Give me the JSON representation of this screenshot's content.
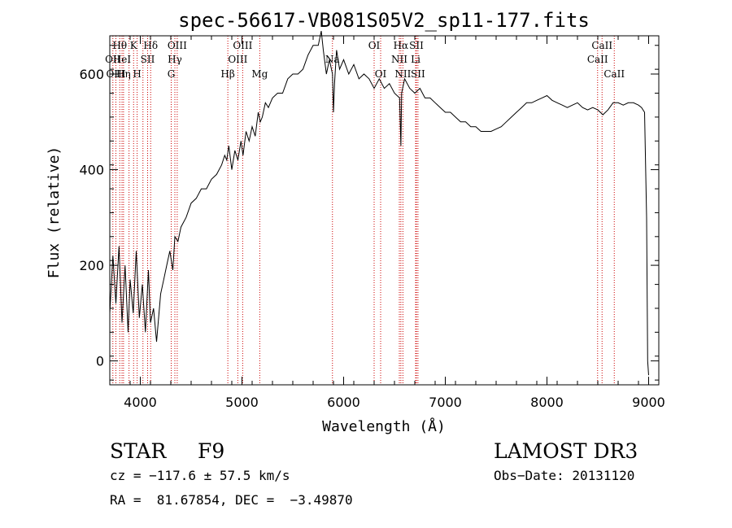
{
  "chart_data": {
    "type": "line",
    "title": "spec-56617-VB081S05V2_sp11-177.fits",
    "xlabel": "Wavelength (Å)",
    "ylabel": "Flux (relative)",
    "xlim": [
      3700,
      9100
    ],
    "ylim": [
      -50,
      680
    ],
    "xticks": [
      4000,
      5000,
      6000,
      7000,
      8000,
      9000
    ],
    "yticks": [
      0,
      200,
      400,
      600
    ],
    "grid": false,
    "series_color": "#000000",
    "line_color": "#cc0000",
    "spectrum": {
      "x": [
        3700,
        3730,
        3760,
        3790,
        3820,
        3850,
        3880,
        3900,
        3930,
        3960,
        3990,
        4020,
        4050,
        4080,
        4100,
        4130,
        4160,
        4200,
        4230,
        4260,
        4290,
        4320,
        4340,
        4370,
        4400,
        4450,
        4500,
        4550,
        4600,
        4650,
        4700,
        4750,
        4800,
        4830,
        4850,
        4870,
        4900,
        4930,
        4960,
        4990,
        5010,
        5040,
        5070,
        5100,
        5130,
        5160,
        5180,
        5200,
        5230,
        5260,
        5300,
        5350,
        5400,
        5450,
        5500,
        5550,
        5600,
        5650,
        5700,
        5750,
        5780,
        5800,
        5830,
        5860,
        5890,
        5900,
        5910,
        5930,
        5960,
        6000,
        6050,
        6100,
        6150,
        6200,
        6250,
        6300,
        6350,
        6400,
        6450,
        6500,
        6550,
        6563,
        6570,
        6600,
        6650,
        6700,
        6750,
        6800,
        6850,
        6900,
        6950,
        7000,
        7050,
        7100,
        7150,
        7200,
        7250,
        7300,
        7350,
        7400,
        7450,
        7500,
        7550,
        7600,
        7650,
        7700,
        7750,
        7800,
        7850,
        7900,
        7950,
        8000,
        8050,
        8100,
        8150,
        8200,
        8250,
        8300,
        8350,
        8400,
        8450,
        8500,
        8550,
        8600,
        8650,
        8700,
        8750,
        8800,
        8850,
        8900,
        8930,
        8960,
        8980,
        8990,
        9000
      ],
      "y": [
        100,
        220,
        120,
        240,
        80,
        200,
        60,
        170,
        100,
        230,
        90,
        160,
        60,
        190,
        80,
        110,
        40,
        140,
        170,
        200,
        230,
        190,
        260,
        250,
        280,
        300,
        330,
        340,
        360,
        360,
        380,
        390,
        410,
        430,
        420,
        450,
        400,
        440,
        420,
        460,
        430,
        480,
        460,
        490,
        470,
        520,
        500,
        510,
        540,
        530,
        550,
        560,
        560,
        590,
        600,
        600,
        610,
        640,
        660,
        660,
        690,
        650,
        600,
        630,
        600,
        520,
        580,
        650,
        610,
        630,
        600,
        620,
        590,
        600,
        590,
        570,
        590,
        570,
        580,
        560,
        550,
        450,
        560,
        590,
        570,
        560,
        570,
        550,
        550,
        540,
        530,
        520,
        520,
        510,
        500,
        500,
        490,
        490,
        480,
        480,
        480,
        485,
        490,
        500,
        510,
        520,
        530,
        540,
        540,
        545,
        550,
        555,
        545,
        540,
        535,
        530,
        535,
        540,
        530,
        525,
        530,
        525,
        515,
        525,
        540,
        540,
        535,
        540,
        540,
        535,
        530,
        520,
        300,
        0,
        -30
      ]
    },
    "lines": [
      {
        "x": 3730,
        "label": "OII",
        "row": 1
      },
      {
        "x": 3760,
        "label": "OIII",
        "row": 2
      },
      {
        "x": 3798,
        "label": "Hθ",
        "row": 0
      },
      {
        "x": 3820,
        "label": "HeI",
        "row": 1
      },
      {
        "x": 3835,
        "label": "Hη",
        "row": 2
      },
      {
        "x": 3889,
        "label": "",
        "row": 3
      },
      {
        "x": 3934,
        "label": "K",
        "row": 0
      },
      {
        "x": 3969,
        "label": "H",
        "row": 2
      },
      {
        "x": 4026,
        "label": "",
        "row": 3
      },
      {
        "x": 4072,
        "label": "SII",
        "row": 1
      },
      {
        "x": 4102,
        "label": "Hδ",
        "row": 0
      },
      {
        "x": 4304,
        "label": "G",
        "row": 2
      },
      {
        "x": 4340,
        "label": "Hγ",
        "row": 1
      },
      {
        "x": 4363,
        "label": "OIII",
        "row": 0
      },
      {
        "x": 4861,
        "label": "Hβ",
        "row": 2
      },
      {
        "x": 4959,
        "label": "OIII",
        "row": 1
      },
      {
        "x": 5007,
        "label": "OIII",
        "row": 0
      },
      {
        "x": 5175,
        "label": "Mg",
        "row": 2
      },
      {
        "x": 5890,
        "label": "Na",
        "row": 1
      },
      {
        "x": 6300,
        "label": "OI",
        "row": 0
      },
      {
        "x": 6364,
        "label": "OI",
        "row": 2
      },
      {
        "x": 6548,
        "label": "NII",
        "row": 1
      },
      {
        "x": 6563,
        "label": "Hα",
        "row": 0
      },
      {
        "x": 6583,
        "label": "NII",
        "row": 2
      },
      {
        "x": 6708,
        "label": "Li",
        "row": 1
      },
      {
        "x": 6716,
        "label": "SII",
        "row": 0
      },
      {
        "x": 6731,
        "label": "SII",
        "row": 2
      },
      {
        "x": 8498,
        "label": "CaII",
        "row": 1
      },
      {
        "x": 8542,
        "label": "CaII",
        "row": 0
      },
      {
        "x": 8662,
        "label": "CaII",
        "row": 2
      }
    ]
  },
  "info": {
    "object_class": "STAR",
    "subclass": "F9",
    "survey": "LAMOST DR3",
    "cz": "cz = −117.6 ± 57.5 km/s",
    "obs_date": "Obs−Date: 20131120",
    "coords": "RA =  81.67854, DEC =  −3.49870"
  }
}
